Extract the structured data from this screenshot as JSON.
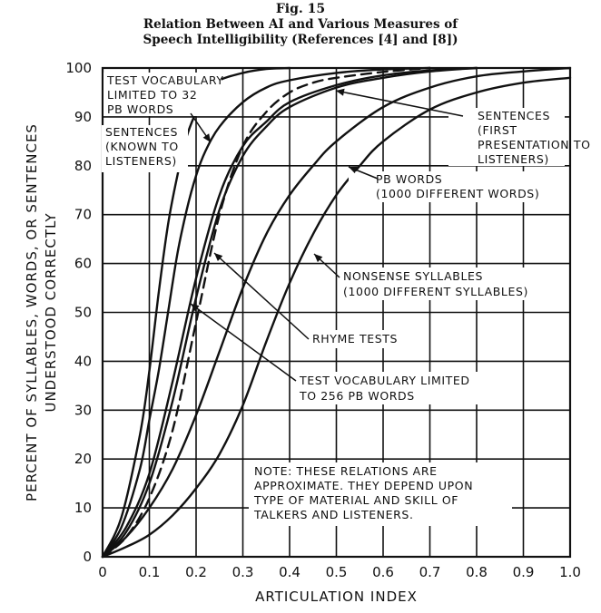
{
  "figure": {
    "number": "Fig. 15",
    "title_line1": "Relation Between AI and Various Measures of",
    "title_line2": "Speech Intelligibility (References [4] and [8])"
  },
  "chart_data": {
    "type": "line",
    "title": "Relation Between AI and Various Measures of Speech Intelligibility (References [4] and [8])",
    "xlabel": "ARTICULATION INDEX",
    "ylabel_line1": "PERCENT OF SYLLABLES, WORDS, OR SENTENCES",
    "ylabel_line2": "UNDERSTOOD CORRECTLY",
    "xlim": [
      0,
      1.0
    ],
    "ylim": [
      0,
      100
    ],
    "grid": true,
    "x_ticks": [
      "0",
      "0.1",
      "0.2",
      "0.3",
      "0.4",
      "0.5",
      "0.6",
      "0.7",
      "0.8",
      "0.9",
      "1.0"
    ],
    "y_ticks": [
      "0",
      "10",
      "20",
      "30",
      "40",
      "50",
      "60",
      "70",
      "80",
      "90",
      "100"
    ],
    "series": [
      {
        "key": "tv32",
        "name": "TEST VOCABULARY LIMITED TO 32 PB WORDS",
        "dashed": false,
        "points": [
          [
            0,
            0
          ],
          [
            0.04,
            8
          ],
          [
            0.08,
            25
          ],
          [
            0.1,
            38
          ],
          [
            0.12,
            54
          ],
          [
            0.14,
            68
          ],
          [
            0.16,
            78
          ],
          [
            0.18,
            86
          ],
          [
            0.2,
            91
          ],
          [
            0.22,
            95
          ],
          [
            0.25,
            97.5
          ],
          [
            0.3,
            99
          ],
          [
            0.35,
            99.8
          ],
          [
            0.4,
            100
          ]
        ]
      },
      {
        "key": "sent_known",
        "name": "SENTENCES (KNOWN TO LISTENERS)",
        "dashed": false,
        "points": [
          [
            0,
            0
          ],
          [
            0.04,
            6
          ],
          [
            0.08,
            18
          ],
          [
            0.1,
            28
          ],
          [
            0.12,
            38
          ],
          [
            0.14,
            50
          ],
          [
            0.16,
            62
          ],
          [
            0.18,
            71
          ],
          [
            0.2,
            78
          ],
          [
            0.22,
            83
          ],
          [
            0.25,
            88
          ],
          [
            0.3,
            93
          ],
          [
            0.35,
            96
          ],
          [
            0.4,
            97.5
          ],
          [
            0.5,
            99
          ],
          [
            0.6,
            99.7
          ],
          [
            0.7,
            100
          ]
        ]
      },
      {
        "key": "tv256",
        "name": "TEST VOCABULARY LIMITED TO 256 PB WORDS",
        "dashed": false,
        "points": [
          [
            0,
            0
          ],
          [
            0.05,
            6
          ],
          [
            0.1,
            17
          ],
          [
            0.15,
            36
          ],
          [
            0.2,
            57
          ],
          [
            0.25,
            74
          ],
          [
            0.3,
            84
          ],
          [
            0.35,
            89
          ],
          [
            0.4,
            93
          ],
          [
            0.5,
            96.5
          ],
          [
            0.6,
            98.5
          ],
          [
            0.7,
            99.5
          ],
          [
            0.8,
            100
          ]
        ]
      },
      {
        "key": "rhyme",
        "name": "RHYME TESTS",
        "dashed": false,
        "points": [
          [
            0,
            0
          ],
          [
            0.05,
            5
          ],
          [
            0.1,
            15
          ],
          [
            0.15,
            32
          ],
          [
            0.2,
            53
          ],
          [
            0.25,
            71
          ],
          [
            0.3,
            82
          ],
          [
            0.35,
            88
          ],
          [
            0.4,
            92
          ],
          [
            0.5,
            96
          ],
          [
            0.6,
            98
          ],
          [
            0.7,
            99.3
          ],
          [
            0.8,
            100
          ]
        ]
      },
      {
        "key": "sent_first",
        "name": "SENTENCES (FIRST PRESENTATION TO LISTENERS)",
        "dashed": true,
        "points": [
          [
            0,
            0
          ],
          [
            0.05,
            4
          ],
          [
            0.1,
            12
          ],
          [
            0.15,
            26
          ],
          [
            0.2,
            48
          ],
          [
            0.25,
            70
          ],
          [
            0.3,
            84
          ],
          [
            0.35,
            91
          ],
          [
            0.4,
            95
          ],
          [
            0.45,
            97
          ],
          [
            0.5,
            98
          ],
          [
            0.6,
            99.2
          ],
          [
            0.7,
            100
          ]
        ]
      },
      {
        "key": "pb1000",
        "name": "PB WORDS (1000 DIFFERENT WORDS)",
        "dashed": false,
        "points": [
          [
            0,
            0
          ],
          [
            0.05,
            4
          ],
          [
            0.1,
            10
          ],
          [
            0.15,
            18
          ],
          [
            0.2,
            29
          ],
          [
            0.25,
            42
          ],
          [
            0.3,
            55
          ],
          [
            0.35,
            66
          ],
          [
            0.4,
            74
          ],
          [
            0.45,
            80
          ],
          [
            0.5,
            85
          ],
          [
            0.6,
            92
          ],
          [
            0.7,
            96
          ],
          [
            0.8,
            98.3
          ],
          [
            0.9,
            99.3
          ],
          [
            1.0,
            100
          ]
        ]
      },
      {
        "key": "nonsense",
        "name": "NONSENSE SYLLABLES (1000 DIFFERENT SYLLABLES)",
        "dashed": false,
        "points": [
          [
            0,
            0
          ],
          [
            0.05,
            2
          ],
          [
            0.1,
            4.5
          ],
          [
            0.15,
            8.5
          ],
          [
            0.2,
            14
          ],
          [
            0.25,
            21
          ],
          [
            0.3,
            31
          ],
          [
            0.35,
            44
          ],
          [
            0.4,
            56
          ],
          [
            0.45,
            66
          ],
          [
            0.5,
            74
          ],
          [
            0.55,
            80
          ],
          [
            0.6,
            85
          ],
          [
            0.7,
            91.5
          ],
          [
            0.8,
            95
          ],
          [
            0.9,
            97
          ],
          [
            1.0,
            98
          ]
        ]
      }
    ],
    "annotations": {
      "tv32": [
        "TEST VOCABULARY",
        "LIMITED TO 32",
        "PB WORDS"
      ],
      "sent_known": [
        "SENTENCES",
        "(KNOWN TO",
        "LISTENERS)"
      ],
      "sent_first": [
        "SENTENCES",
        "(FIRST",
        "PRESENTATION TO",
        "LISTENERS)"
      ],
      "pb1000": [
        "PB WORDS",
        "(1000 DIFFERENT WORDS)"
      ],
      "nonsense": [
        "NONSENSE SYLLABLES",
        "(1000 DIFFERENT SYLLABLES)"
      ],
      "rhyme": [
        "RHYME TESTS"
      ],
      "tv256": [
        "TEST VOCABULARY LIMITED",
        "TO 256 PB WORDS"
      ],
      "note": [
        "NOTE: THESE RELATIONS ARE",
        "APPROXIMATE. THEY DEPEND UPON",
        "TYPE OF MATERIAL AND SKILL OF",
        "TALKERS AND LISTENERS."
      ]
    }
  }
}
